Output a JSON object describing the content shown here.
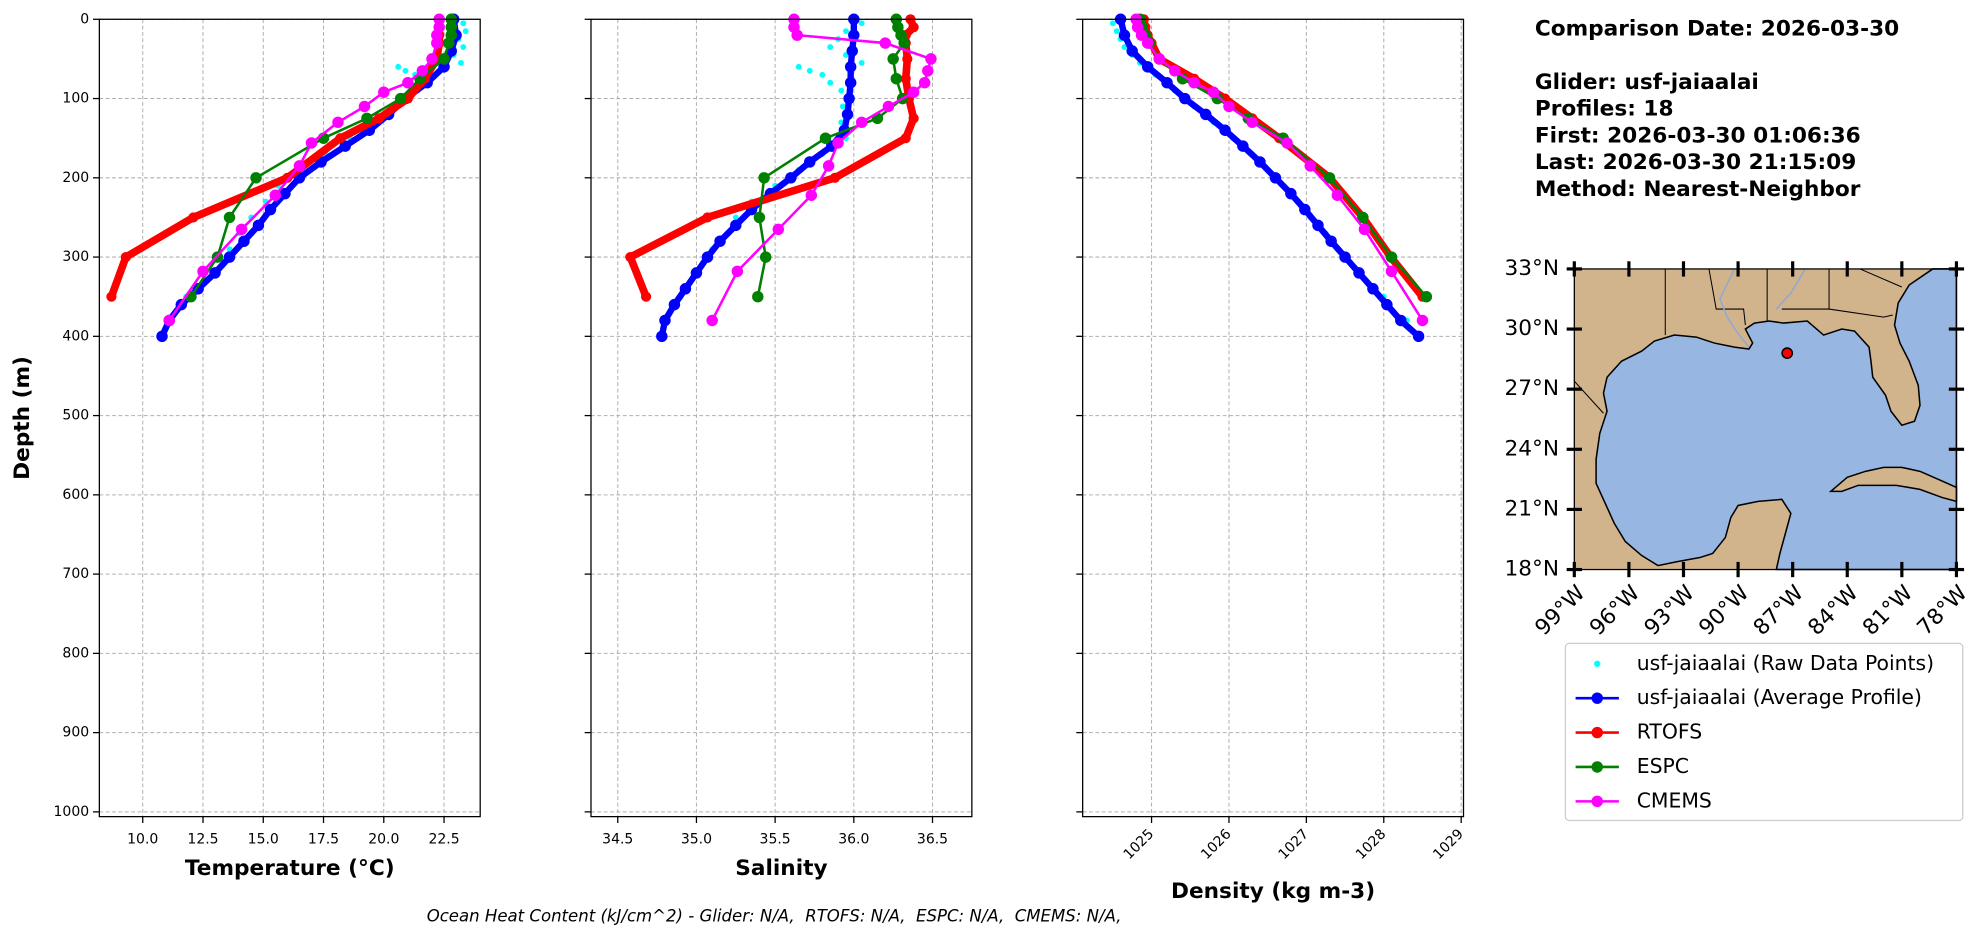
{
  "info": {
    "comparison_date": "Comparison Date: 2026-03-30",
    "glider": "Glider: usf-jaiaalai",
    "profiles": "Profiles: 18",
    "first": "First: 2026-03-30 01:06:36",
    "last": "Last: 2026-03-30 21:15:09",
    "method": "Method: Nearest-Neighbor"
  },
  "footer": "Ocean Heat Content (kJ/cm^2) - Glider: N/A,  RTOFS: N/A,  ESPC: N/A,  CMEMS: N/A,",
  "chart_data": [
    {
      "type": "profile",
      "xlabel": "Temperature (°C)",
      "ylabel": "Depth (m)",
      "xlim": [
        8.2,
        24.0
      ],
      "ylim": [
        0,
        1006
      ],
      "invert_y": true,
      "grid": true,
      "xticks": [
        {
          "value": 10,
          "label": "10.0"
        },
        12.5,
        {
          "value": 15,
          "label": "15.0"
        },
        17.5,
        {
          "value": 20,
          "label": "20.0"
        },
        22.5
      ],
      "yticks": [
        0,
        100,
        200,
        300,
        400,
        500,
        600,
        700,
        800,
        900,
        1000
      ],
      "show_ytick_labels": true,
      "series": [
        {
          "name": "usf-jaiaalai (Raw Data Points)",
          "color": "#00ffff",
          "depth": [
            5,
            15,
            25,
            35,
            45,
            55,
            60,
            65,
            70,
            80,
            90,
            110,
            130,
            150,
            170,
            190,
            210,
            230,
            250,
            270,
            290,
            320,
            350,
            380
          ],
          "values": [
            23.3,
            23.4,
            23.1,
            23.3,
            22.9,
            23.2,
            20.6,
            20.9,
            21.3,
            21.8,
            21.4,
            20.3,
            19.6,
            18.6,
            17.6,
            16.4,
            15.6,
            15.1,
            14.5,
            14.0,
            13.6,
            12.9,
            11.8,
            11.0
          ]
        },
        {
          "name": "usf-jaiaalai (Average Profile)",
          "color": "#0000ff",
          "depth": [
            0,
            20,
            40,
            60,
            80,
            100,
            120,
            140,
            160,
            180,
            200,
            220,
            240,
            260,
            280,
            300,
            320,
            340,
            360,
            380,
            400
          ],
          "values": [
            22.9,
            23.0,
            22.8,
            22.5,
            21.8,
            20.9,
            20.2,
            19.4,
            18.4,
            17.4,
            16.5,
            15.9,
            15.3,
            14.8,
            14.2,
            13.6,
            13.0,
            12.3,
            11.6,
            11.1,
            10.8
          ]
        },
        {
          "name": "RTOFS",
          "color": "#ff0000",
          "depth": [
            0,
            10,
            20,
            30,
            50,
            75,
            100,
            125,
            150,
            200,
            250,
            300,
            350
          ],
          "values": [
            22.3,
            22.3,
            22.3,
            22.3,
            22.2,
            21.7,
            21.0,
            19.8,
            18.2,
            16.0,
            12.1,
            9.3,
            8.7
          ]
        },
        {
          "name": "ESPC",
          "color": "#008000",
          "depth": [
            0,
            10,
            20,
            30,
            50,
            75,
            100,
            125,
            150,
            200,
            250,
            300,
            350
          ],
          "values": [
            22.8,
            22.8,
            22.8,
            22.7,
            22.5,
            21.5,
            20.7,
            19.3,
            17.5,
            14.7,
            13.6,
            13.1,
            12.0
          ]
        },
        {
          "name": "CMEMS",
          "color": "#ff00ff",
          "depth": [
            0,
            10,
            20,
            30,
            50,
            65,
            80,
            92,
            110,
            130,
            156,
            185,
            222,
            265,
            318,
            380
          ],
          "values": [
            22.3,
            22.3,
            22.2,
            22.2,
            22.0,
            21.6,
            21.0,
            20.0,
            19.2,
            18.1,
            17.0,
            16.5,
            15.5,
            14.1,
            12.5,
            11.1
          ]
        }
      ]
    },
    {
      "type": "profile",
      "xlabel": "Salinity",
      "xlim": [
        34.33,
        36.75
      ],
      "ylim": [
        0,
        1006
      ],
      "invert_y": true,
      "grid": true,
      "xticks": [
        34.5,
        {
          "value": 35,
          "label": "35.0"
        },
        35.5,
        {
          "value": 36,
          "label": "36.0"
        },
        36.5
      ],
      "yticks": [
        0,
        100,
        200,
        300,
        400,
        500,
        600,
        700,
        800,
        900,
        1000
      ],
      "show_ytick_labels": false,
      "series": [
        {
          "name": "usf-jaiaalai (Raw Data Points)",
          "color": "#00ffff",
          "depth": [
            5,
            15,
            25,
            35,
            45,
            55,
            60,
            65,
            70,
            80,
            90,
            110,
            130,
            150,
            170,
            190,
            210,
            230,
            250,
            270,
            290,
            320,
            350,
            380
          ],
          "values": [
            36.05,
            35.95,
            35.9,
            35.85,
            35.95,
            36.05,
            35.65,
            35.72,
            35.8,
            35.85,
            35.92,
            35.93,
            35.92,
            35.95,
            35.8,
            35.65,
            35.5,
            35.35,
            35.25,
            35.2,
            35.1,
            35.0,
            34.9,
            34.8
          ]
        },
        {
          "name": "usf-jaiaalai (Average Profile)",
          "color": "#0000ff",
          "depth": [
            0,
            20,
            40,
            60,
            80,
            100,
            120,
            140,
            160,
            180,
            200,
            220,
            240,
            260,
            280,
            300,
            320,
            340,
            360,
            380,
            400
          ],
          "values": [
            36.0,
            36.0,
            35.99,
            35.98,
            35.98,
            35.97,
            35.96,
            35.94,
            35.86,
            35.72,
            35.6,
            35.47,
            35.35,
            35.25,
            35.15,
            35.07,
            35.0,
            34.93,
            34.86,
            34.8,
            34.78
          ]
        },
        {
          "name": "RTOFS",
          "color": "#ff0000",
          "depth": [
            0,
            10,
            20,
            30,
            50,
            75,
            100,
            125,
            150,
            200,
            250,
            300,
            350
          ],
          "values": [
            36.36,
            36.38,
            36.33,
            36.33,
            36.34,
            36.33,
            36.35,
            36.38,
            36.33,
            35.88,
            35.07,
            34.58,
            34.68
          ]
        },
        {
          "name": "ESPC",
          "color": "#008000",
          "depth": [
            0,
            10,
            20,
            30,
            50,
            75,
            100,
            125,
            150,
            200,
            250,
            300,
            350
          ],
          "values": [
            36.27,
            36.28,
            36.3,
            36.32,
            36.25,
            36.27,
            36.31,
            36.15,
            35.82,
            35.43,
            35.4,
            35.44,
            35.39
          ]
        },
        {
          "name": "CMEMS",
          "color": "#ff00ff",
          "depth": [
            0,
            10,
            20,
            30,
            50,
            65,
            80,
            92,
            110,
            130,
            156,
            185,
            222,
            265,
            318,
            380
          ],
          "values": [
            35.62,
            35.62,
            35.64,
            36.2,
            36.49,
            36.47,
            36.45,
            36.38,
            36.22,
            36.05,
            35.9,
            35.84,
            35.73,
            35.52,
            35.26,
            35.1
          ]
        }
      ]
    },
    {
      "type": "profile",
      "xlabel": "Density (kg m-3)",
      "xlim": [
        1024.11,
        1029.03
      ],
      "ylim": [
        0,
        1006
      ],
      "invert_y": true,
      "grid": true,
      "xtick_rotation": 45,
      "xticks": [
        1025,
        1026,
        1027,
        1028,
        1029
      ],
      "yticks": [
        0,
        100,
        200,
        300,
        400,
        500,
        600,
        700,
        800,
        900,
        1000
      ],
      "show_ytick_labels": false,
      "series": [
        {
          "name": "usf-jaiaalai (Raw Data Points)",
          "color": "#00ffff",
          "depth": [
            5,
            15,
            25,
            35,
            45,
            55,
            60,
            65,
            70,
            80,
            90,
            110,
            130,
            150,
            170,
            190,
            210,
            230,
            250,
            270,
            290,
            320,
            350,
            380
          ],
          "values": [
            1024.5,
            1024.55,
            1024.6,
            1024.65,
            1024.75,
            1024.85,
            1024.95,
            1025.0,
            1025.05,
            1025.2,
            1025.3,
            1025.55,
            1025.8,
            1026.05,
            1026.3,
            1026.5,
            1026.7,
            1026.9,
            1027.05,
            1027.25,
            1027.4,
            1027.7,
            1028.0,
            1028.3
          ]
        },
        {
          "name": "usf-jaiaalai (Average Profile)",
          "color": "#0000ff",
          "depth": [
            0,
            20,
            40,
            60,
            80,
            100,
            120,
            140,
            160,
            180,
            200,
            220,
            240,
            260,
            280,
            300,
            320,
            340,
            360,
            380,
            400
          ],
          "values": [
            1024.6,
            1024.65,
            1024.75,
            1024.95,
            1025.2,
            1025.43,
            1025.7,
            1025.95,
            1026.18,
            1026.4,
            1026.6,
            1026.8,
            1026.98,
            1027.15,
            1027.32,
            1027.5,
            1027.68,
            1027.86,
            1028.04,
            1028.22,
            1028.45
          ]
        },
        {
          "name": "RTOFS",
          "color": "#ff0000",
          "depth": [
            0,
            10,
            20,
            30,
            50,
            75,
            100,
            125,
            150,
            200,
            250,
            300,
            350
          ],
          "values": [
            1024.9,
            1024.92,
            1024.95,
            1025.0,
            1025.1,
            1025.55,
            1025.95,
            1026.3,
            1026.65,
            1027.3,
            1027.73,
            1028.09,
            1028.5
          ]
        },
        {
          "name": "ESPC",
          "color": "#008000",
          "depth": [
            0,
            10,
            20,
            30,
            50,
            75,
            100,
            125,
            150,
            200,
            250,
            300,
            350
          ],
          "values": [
            1024.85,
            1024.88,
            1024.92,
            1024.97,
            1025.1,
            1025.4,
            1025.85,
            1026.25,
            1026.7,
            1027.3,
            1027.73,
            1028.1,
            1028.55
          ]
        },
        {
          "name": "CMEMS",
          "color": "#ff00ff",
          "depth": [
            0,
            10,
            20,
            30,
            50,
            65,
            80,
            92,
            110,
            130,
            156,
            185,
            222,
            265,
            318,
            380
          ],
          "values": [
            1024.8,
            1024.82,
            1024.87,
            1024.95,
            1025.1,
            1025.3,
            1025.55,
            1025.8,
            1026.0,
            1026.3,
            1026.75,
            1027.05,
            1027.4,
            1027.75,
            1028.1,
            1028.5
          ]
        }
      ]
    },
    {
      "type": "map",
      "xlim": [
        -99,
        -78
      ],
      "ylim": [
        18,
        33
      ],
      "xtick_rotation": 45,
      "xticks": [
        {
          "value": -99,
          "label": "99°W"
        },
        {
          "value": -96,
          "label": "96°W"
        },
        {
          "value": -93,
          "label": "93°W"
        },
        {
          "value": -90,
          "label": "90°W"
        },
        {
          "value": -87,
          "label": "87°W"
        },
        {
          "value": -84,
          "label": "84°W"
        },
        {
          "value": -81,
          "label": "81°W"
        },
        {
          "value": -78,
          "label": "78°W"
        }
      ],
      "yticks": [
        {
          "value": 18,
          "label": "18°N"
        },
        {
          "value": 21,
          "label": "21°N"
        },
        {
          "value": 24,
          "label": "24°N"
        },
        {
          "value": 27,
          "label": "27°N"
        },
        {
          "value": 30,
          "label": "30°N"
        },
        {
          "value": 33,
          "label": "33°N"
        }
      ],
      "land_color": "#d2b48c",
      "ocean_color": "#97b6e1",
      "marker": {
        "lon": -87.3,
        "lat": 28.8,
        "color": "#ff0000"
      }
    }
  ]
}
